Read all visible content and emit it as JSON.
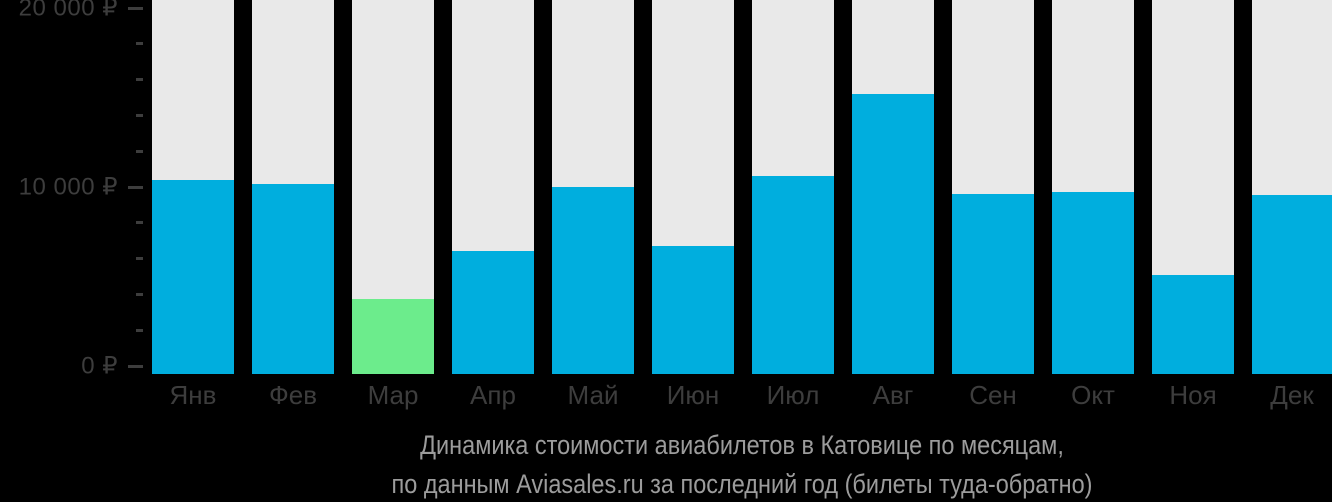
{
  "chart_data": {
    "type": "bar",
    "title": "Динамика стоимости авиабилетов в Катовице по месяцам,",
    "subtitle": "по данным Aviasales.ru за последний год (билеты туда-обратно)",
    "categories": [
      "Янв",
      "Фев",
      "Мар",
      "Апр",
      "Май",
      "Июн",
      "Июл",
      "Авг",
      "Сен",
      "Окт",
      "Ноя",
      "Дек"
    ],
    "values": [
      10400,
      10150,
      3750,
      6400,
      10000,
      6700,
      10600,
      15200,
      9600,
      9700,
      5100,
      9550
    ],
    "unit": "₽",
    "highlight_index": 2,
    "highlight_category": "Мар",
    "ylim": [
      0,
      20000
    ],
    "y_major_ticks": [
      {
        "value": 0,
        "label": "0 ₽"
      },
      {
        "value": 10000,
        "label": "10 000 ₽"
      },
      {
        "value": 20000,
        "label": "20 000 ₽"
      }
    ],
    "y_minor_step": 2000,
    "grid": false,
    "legend": "none",
    "background_columns": true
  },
  "caption": {
    "line1": "Динамика стоимости авиабилетов в Катовице по месяцам,",
    "line2": "по данным Aviasales.ru за последний год (билеты туда-обратно)"
  },
  "colors": {
    "background": "#000000",
    "column_background": "#E9E9E9",
    "bar": "#00AEDE",
    "bar_highlight": "#6CEC8C",
    "axis_text": "#3D3D3D",
    "tick": "#3D3D3D",
    "caption_text": "#9C9C9C"
  }
}
